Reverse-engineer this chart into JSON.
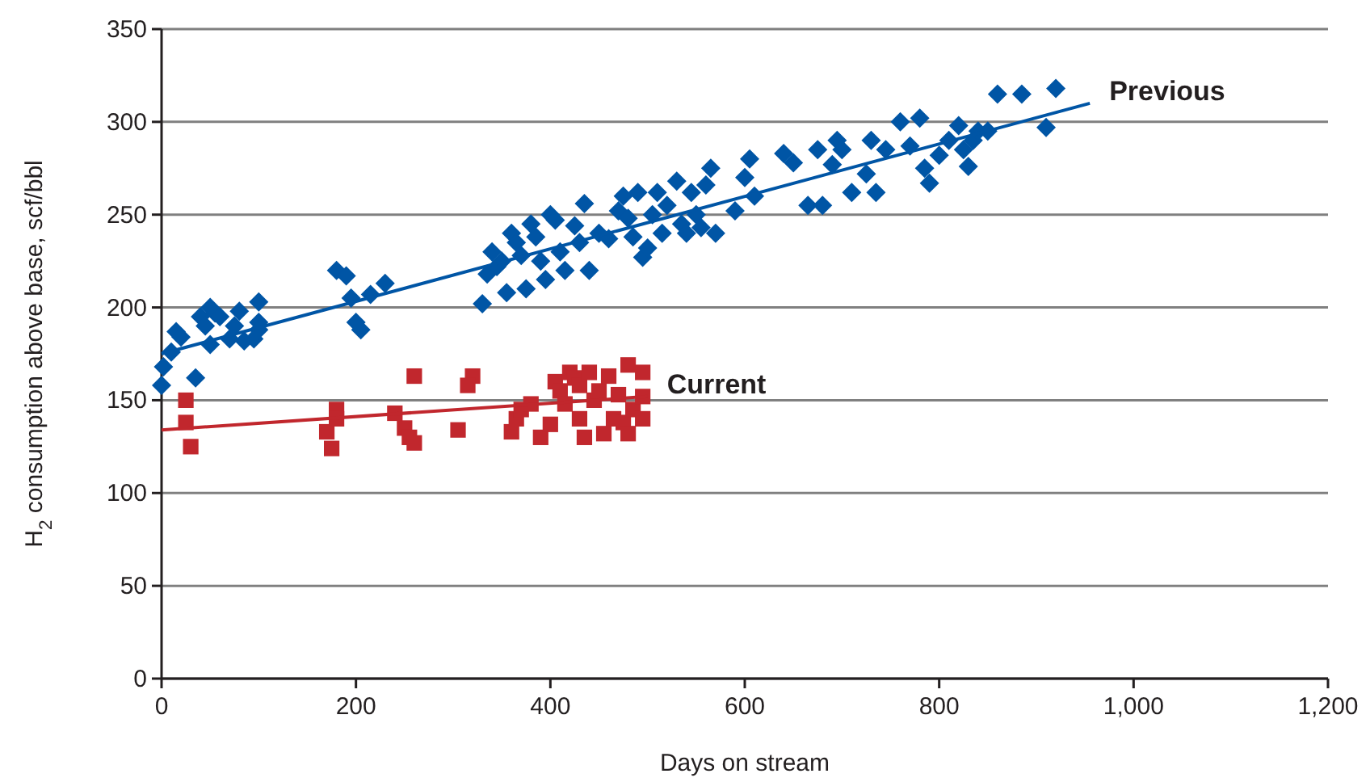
{
  "chart_data": {
    "type": "scatter",
    "xlabel": "Days on stream",
    "ylabel": "H$_{2}$ consumption above base, scf/bbl",
    "xlim": [
      0,
      1200
    ],
    "xticks": [
      0,
      200,
      400,
      600,
      800,
      {
        "value": 1000,
        "label": "1,000"
      },
      {
        "value": 1200,
        "label": "1,200"
      }
    ],
    "ylim": [
      0,
      350
    ],
    "yticks": [
      0,
      50,
      100,
      150,
      200,
      250,
      300,
      350
    ],
    "grid": "y",
    "series": [
      {
        "name": "Previous",
        "marker": "diamond",
        "color": "#0055a5",
        "x": [
          0,
          2,
          10,
          15,
          20,
          35,
          40,
          45,
          50,
          50,
          55,
          60,
          70,
          75,
          80,
          85,
          95,
          100,
          100,
          100,
          180,
          190,
          195,
          200,
          205,
          215,
          230,
          330,
          335,
          340,
          345,
          350,
          355,
          360,
          365,
          370,
          375,
          380,
          385,
          390,
          395,
          400,
          405,
          410,
          415,
          425,
          430,
          435,
          440,
          450,
          460,
          470,
          475,
          480,
          485,
          490,
          495,
          500,
          505,
          510,
          515,
          520,
          530,
          535,
          540,
          545,
          550,
          555,
          560,
          565,
          570,
          590,
          600,
          605,
          610,
          640,
          650,
          665,
          675,
          680,
          690,
          695,
          700,
          710,
          725,
          730,
          735,
          745,
          760,
          770,
          780,
          785,
          790,
          800,
          810,
          820,
          825,
          830,
          835,
          840,
          850,
          860,
          885,
          910,
          920
        ],
        "values": [
          158,
          168,
          176,
          187,
          184,
          162,
          195,
          190,
          200,
          180,
          197,
          195,
          183,
          190,
          198,
          182,
          183,
          203,
          192,
          188,
          220,
          217,
          205,
          192,
          188,
          207,
          213,
          202,
          218,
          230,
          222,
          225,
          208,
          240,
          235,
          228,
          210,
          245,
          238,
          225,
          215,
          250,
          247,
          230,
          220,
          244,
          235,
          256,
          220,
          240,
          237,
          252,
          260,
          248,
          238,
          262,
          227,
          232,
          250,
          262,
          240,
          255,
          268,
          245,
          240,
          262,
          250,
          243,
          266,
          275,
          240,
          252,
          270,
          280,
          260,
          283,
          278,
          255,
          285,
          255,
          277,
          290,
          285,
          262,
          272,
          290,
          262,
          285,
          300,
          287,
          302,
          275,
          267,
          282,
          290,
          298,
          285,
          276,
          290,
          295,
          295,
          315,
          315,
          297,
          318
        ]
      },
      {
        "type": "line",
        "color": "#0055a5",
        "x": [
          0,
          955
        ],
        "values": [
          175,
          310
        ]
      },
      {
        "name": "Current",
        "marker": "square",
        "color": "#c1272d",
        "x": [
          25,
          25,
          30,
          170,
          175,
          180,
          180,
          240,
          250,
          255,
          260,
          260,
          305,
          320,
          315,
          360,
          365,
          370,
          380,
          390,
          400,
          405,
          410,
          415,
          420,
          425,
          430,
          430,
          435,
          440,
          445,
          450,
          455,
          460,
          465,
          470,
          475,
          480,
          480,
          485,
          495,
          495,
          495
        ],
        "values": [
          150,
          138,
          125,
          133,
          124,
          145,
          140,
          143,
          135,
          130,
          127,
          163,
          134,
          163,
          158,
          133,
          140,
          145,
          148,
          130,
          137,
          160,
          155,
          148,
          165,
          162,
          140,
          158,
          130,
          165,
          150,
          155,
          132,
          163,
          140,
          153,
          138,
          169,
          132,
          145,
          140,
          165,
          152
        ]
      },
      {
        "type": "line",
        "color": "#c1272d",
        "x": [
          0,
          500
        ],
        "values": [
          134,
          152
        ]
      }
    ]
  }
}
